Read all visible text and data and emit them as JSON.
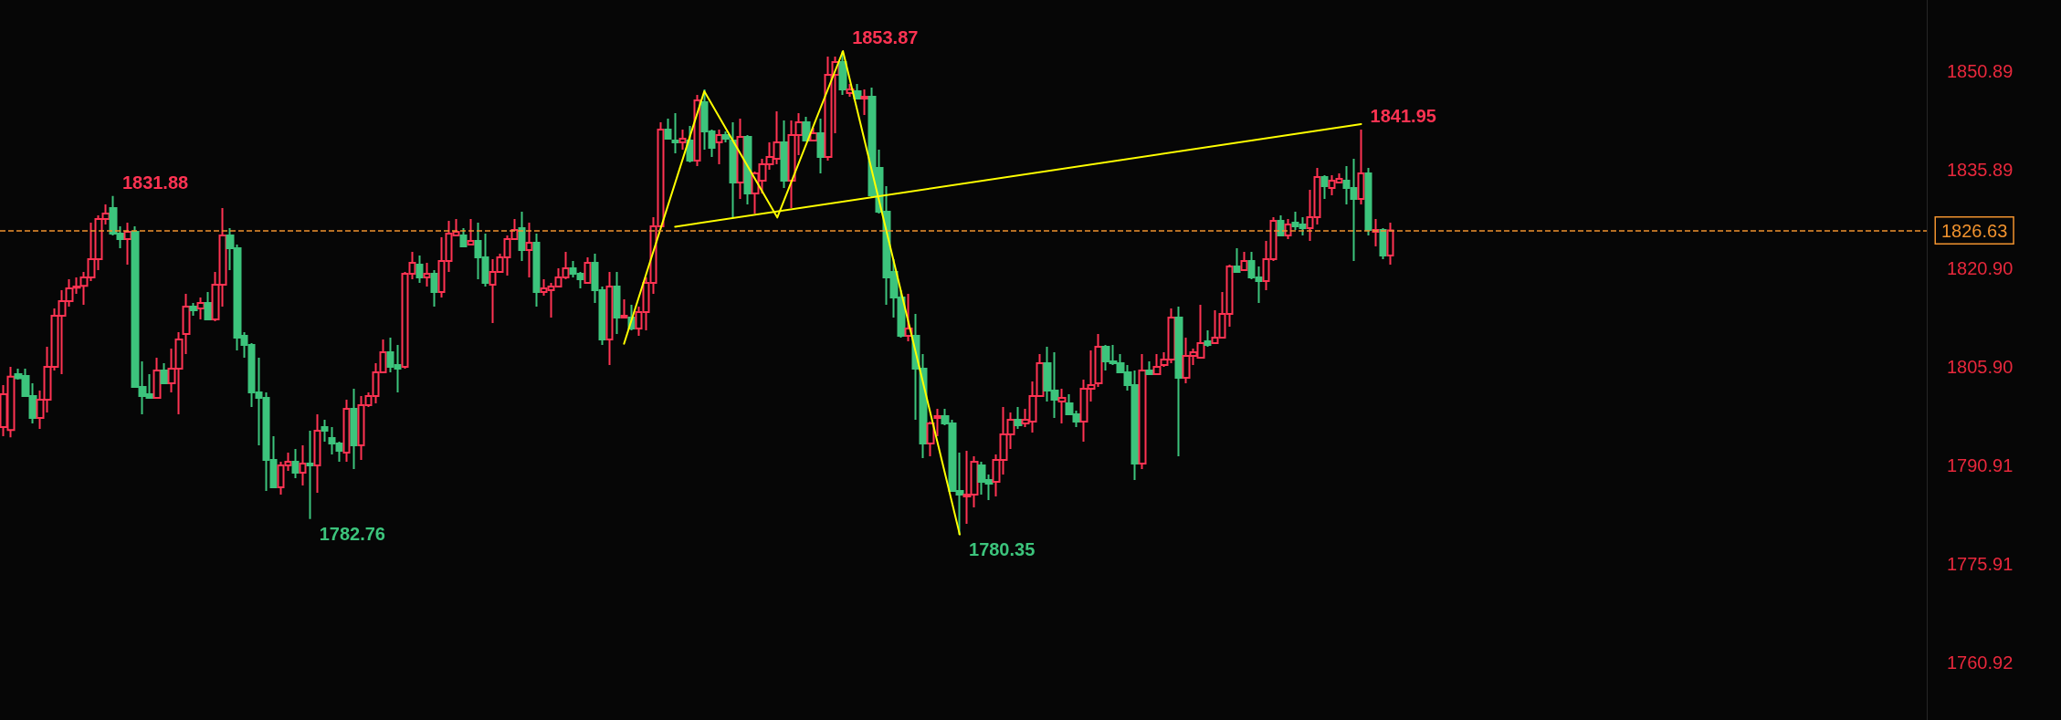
{
  "chart_data": {
    "type": "candlestick",
    "categories": [
      null,
      null,
      null,
      null,
      null,
      null,
      null,
      null,
      null,
      null,
      null,
      null,
      null,
      null,
      null,
      null,
      null,
      null,
      null,
      null,
      null,
      null,
      null,
      null,
      null,
      null,
      null,
      null,
      null,
      null,
      null,
      null,
      null,
      null,
      null,
      null,
      null,
      null,
      null,
      null,
      null,
      null,
      null,
      null,
      null,
      null,
      null,
      null,
      null,
      null,
      null,
      null,
      null,
      null,
      null,
      null,
      null,
      null,
      null,
      null,
      null,
      null,
      null,
      null,
      null,
      null,
      null,
      null,
      null,
      null,
      null,
      null,
      null,
      null,
      null,
      null,
      null,
      null,
      null,
      null,
      null,
      null,
      null,
      null,
      null,
      null,
      null,
      null,
      null,
      null,
      null,
      null,
      null,
      null,
      null,
      null,
      null,
      null,
      null,
      null,
      null,
      null,
      null,
      null,
      null,
      null,
      null,
      null,
      null,
      null,
      null,
      null,
      null,
      null,
      null,
      null,
      null,
      null,
      null,
      null,
      null,
      null,
      null,
      null,
      null,
      null,
      null,
      null,
      null,
      null,
      null,
      null,
      null,
      null,
      null,
      null,
      null,
      null,
      null,
      null,
      null,
      null,
      null,
      null,
      null,
      null,
      null,
      null,
      null,
      null,
      null,
      null,
      null,
      null,
      null,
      null,
      null,
      null,
      null,
      null,
      null,
      null,
      null,
      null,
      null,
      null,
      null,
      null,
      null,
      null,
      null,
      null,
      null,
      null,
      null,
      null,
      null,
      null,
      null,
      null,
      null,
      null,
      null,
      null,
      null,
      null,
      null,
      null,
      null,
      null,
      null,
      null,
      null,
      null,
      null,
      null,
      null,
      null,
      null,
      null,
      null,
      null,
      null,
      null,
      null,
      null,
      null,
      null,
      null,
      null,
      null,
      null,
      null,
      null,
      null,
      null,
      null,
      null,
      null,
      null,
      null,
      null,
      null,
      null,
      null,
      null,
      null,
      null,
      null,
      null,
      null,
      null,
      null,
      null,
      null,
      null,
      null,
      null,
      null,
      null,
      null,
      null,
      null,
      null,
      null,
      null,
      null,
      null,
      null,
      null,
      null,
      null,
      null,
      null,
      null,
      null,
      null,
      null,
      null,
      null,
      null,
      null,
      null,
      null
    ],
    "ohlc": [
      [
        1796.73,
        1803.11,
        1795.34,
        1801.73
      ],
      [
        1796.27,
        1805.9,
        1795.16,
        1804.41
      ],
      [
        1804.79,
        1805.62,
        1803.95,
        1804.14
      ],
      [
        1804.51,
        1805.62,
        1801.46,
        1801.46
      ],
      [
        1801.46,
        1803.4,
        1797.29,
        1798.13
      ],
      [
        1798.13,
        1802.29,
        1796.46,
        1800.9
      ],
      [
        1800.9,
        1808.95,
        1798.96,
        1805.9
      ],
      [
        1805.9,
        1814.78,
        1805.34,
        1813.67
      ],
      [
        1813.67,
        1817.55,
        1804.79,
        1815.89
      ],
      [
        1815.89,
        1819.22,
        1815.05,
        1817.83
      ],
      [
        1817.92,
        1819.49,
        1817.0,
        1818.11
      ],
      [
        1818.2,
        1820.33,
        1815.33,
        1819.49
      ],
      [
        1819.49,
        1827.82,
        1818.94,
        1822.27
      ],
      [
        1822.27,
        1828.93,
        1820.6,
        1828.37
      ],
      [
        1828.37,
        1830.59,
        1827.54,
        1829.21
      ],
      [
        1830.04,
        1831.88,
        1825.88,
        1826.15
      ],
      [
        1826.15,
        1827.26,
        1823.93,
        1825.32
      ],
      [
        1825.32,
        1827.82,
        1821.44,
        1826.43
      ],
      [
        1826.43,
        1827.26,
        1802.84,
        1802.84
      ],
      [
        1802.84,
        1806.73,
        1798.68,
        1801.46
      ],
      [
        1801.73,
        1804.79,
        1801.18,
        1801.18
      ],
      [
        1801.18,
        1807.28,
        1801.18,
        1805.34
      ],
      [
        1805.34,
        1806.45,
        1803.4,
        1803.4
      ],
      [
        1803.4,
        1808.67,
        1802.01,
        1805.62
      ],
      [
        1805.62,
        1811.17,
        1798.68,
        1810.06
      ],
      [
        1810.89,
        1817.0,
        1807.84,
        1815.05
      ],
      [
        1815.05,
        1815.61,
        1813.67,
        1814.5
      ],
      [
        1814.78,
        1816.44,
        1813.11,
        1815.61
      ],
      [
        1815.61,
        1817.27,
        1813.11,
        1813.11
      ],
      [
        1813.11,
        1820.33,
        1812.83,
        1818.38
      ],
      [
        1818.38,
        1830.04,
        1815.05,
        1825.88
      ],
      [
        1825.88,
        1826.99,
        1820.6,
        1823.93
      ],
      [
        1823.93,
        1824.49,
        1808.39,
        1810.34
      ],
      [
        1810.61,
        1811.17,
        1807.28,
        1809.23
      ],
      [
        1809.23,
        1809.5,
        1799.79,
        1802.01
      ],
      [
        1802.01,
        1807.28,
        1793.96,
        1801.18
      ],
      [
        1801.18,
        1802.01,
        1787.02,
        1791.74
      ],
      [
        1791.74,
        1795.35,
        1787.58,
        1787.58
      ],
      [
        1787.58,
        1791.46,
        1786.47,
        1790.91
      ],
      [
        1790.91,
        1792.85,
        1790.08,
        1791.46
      ],
      [
        1791.46,
        1793.41,
        1788.97,
        1789.8
      ],
      [
        1789.8,
        1793.96,
        1787.86,
        1791.19
      ],
      [
        1791.19,
        1796.18,
        1782.76,
        1790.91
      ],
      [
        1790.91,
        1798.68,
        1786.75,
        1796.18
      ],
      [
        1796.74,
        1797.85,
        1794.52,
        1796.18
      ],
      [
        1795.07,
        1796.74,
        1792.57,
        1794.24
      ],
      [
        1794.24,
        1794.52,
        1791.46,
        1793.13
      ],
      [
        1792.85,
        1800.9,
        1791.46,
        1799.51
      ],
      [
        1799.51,
        1802.56,
        1790.35,
        1793.96
      ],
      [
        1793.96,
        1801.46,
        1791.74,
        1800.07
      ],
      [
        1800.07,
        1802.01,
        1799.79,
        1801.46
      ],
      [
        1801.46,
        1806.45,
        1800.34,
        1805.06
      ],
      [
        1805.06,
        1810.06,
        1805.06,
        1808.12
      ],
      [
        1808.12,
        1810.34,
        1805.06,
        1805.9
      ],
      [
        1806.17,
        1809.23,
        1802.01,
        1805.62
      ],
      [
        1805.9,
        1820.33,
        1805.62,
        1820.05
      ],
      [
        1820.05,
        1823.38,
        1819.22,
        1821.71
      ],
      [
        1821.44,
        1822.82,
        1818.66,
        1819.49
      ],
      [
        1819.49,
        1821.71,
        1818.11,
        1820.05
      ],
      [
        1820.05,
        1820.6,
        1815.05,
        1817.27
      ],
      [
        1817.27,
        1825.6,
        1816.44,
        1821.99
      ],
      [
        1821.99,
        1828.1,
        1820.33,
        1826.15
      ],
      [
        1825.88,
        1828.37,
        1825.88,
        1826.43
      ],
      [
        1825.88,
        1826.99,
        1824.21,
        1824.21
      ],
      [
        1824.49,
        1828.37,
        1824.49,
        1825.04
      ],
      [
        1825.04,
        1827.82,
        1819.21,
        1822.54
      ],
      [
        1822.54,
        1826.15,
        1818.1,
        1818.66
      ],
      [
        1818.38,
        1822.26,
        1812.55,
        1820.32
      ],
      [
        1820.32,
        1823.1,
        1820.32,
        1822.54
      ],
      [
        1822.54,
        1825.87,
        1819.77,
        1825.32
      ],
      [
        1825.32,
        1828.37,
        1825.32,
        1826.71
      ],
      [
        1826.98,
        1829.48,
        1821.99,
        1823.65
      ],
      [
        1823.65,
        1827.82,
        1819.49,
        1824.76
      ],
      [
        1824.76,
        1826.15,
        1815.05,
        1817.27
      ],
      [
        1817.27,
        1819.21,
        1816.71,
        1817.82
      ],
      [
        1817.55,
        1818.66,
        1813.38,
        1818.1
      ],
      [
        1818.1,
        1820.88,
        1818.1,
        1819.49
      ],
      [
        1819.49,
        1823.37,
        1819.21,
        1820.88
      ],
      [
        1820.88,
        1821.99,
        1819.49,
        1820.04
      ],
      [
        1820.04,
        1820.32,
        1817.82,
        1819.21
      ],
      [
        1818.66,
        1822.54,
        1818.66,
        1821.71
      ],
      [
        1821.71,
        1823.1,
        1815.6,
        1817.55
      ],
      [
        1817.55,
        1818.1,
        1809.22,
        1810.05
      ],
      [
        1810.05,
        1820.32,
        1806.17,
        1818.1
      ],
      [
        1818.1,
        1820.32,
        1810.89,
        1813.38
      ],
      [
        1813.38,
        1816.16,
        1813.38,
        1813.66
      ],
      [
        1813.38,
        1815.33,
        1811.44,
        1811.72
      ],
      [
        1811.72,
        1815.05,
        1810.61,
        1814.22
      ],
      [
        1814.22,
        1819.49,
        1811.44,
        1818.66
      ],
      [
        1818.66,
        1828.65,
        1816.99,
        1827.26
      ],
      [
        1827.26,
        1843.08,
        1827.26,
        1841.97
      ],
      [
        1841.97,
        1843.63,
        1840.58,
        1840.58
      ],
      [
        1840.3,
        1844.47,
        1838.36,
        1840.03
      ],
      [
        1840.03,
        1841.97,
        1838.92,
        1840.58
      ],
      [
        1840.3,
        1842.52,
        1836.97,
        1837.25
      ],
      [
        1837.25,
        1847.24,
        1836.42,
        1846.41
      ],
      [
        1846.13,
        1848.07,
        1838.92,
        1841.69
      ],
      [
        1841.69,
        1841.97,
        1837.81,
        1839.19
      ],
      [
        1840.03,
        1841.97,
        1836.7,
        1841.14
      ],
      [
        1841.14,
        1841.69,
        1840.03,
        1840.58
      ],
      [
        1840.3,
        1843.08,
        1828.65,
        1833.92
      ],
      [
        1833.92,
        1843.63,
        1831.42,
        1840.86
      ],
      [
        1840.86,
        1841.14,
        1830.59,
        1832.26
      ],
      [
        1832.26,
        1835.59,
        1829.2,
        1835.31
      ],
      [
        1834.2,
        1837.53,
        1832.26,
        1836.7
      ],
      [
        1836.7,
        1840.03,
        1835.86,
        1837.81
      ],
      [
        1837.53,
        1844.74,
        1836.7,
        1840.03
      ],
      [
        1840.03,
        1843.36,
        1833.09,
        1834.2
      ],
      [
        1834.2,
        1843.36,
        1830.04,
        1841.14
      ],
      [
        1841.14,
        1844.47,
        1838.08,
        1843.08
      ],
      [
        1843.08,
        1843.91,
        1840.3,
        1840.3
      ],
      [
        1840.3,
        1842.25,
        1840.3,
        1841.41
      ],
      [
        1841.41,
        1843.63,
        1835.31,
        1837.81
      ],
      [
        1837.81,
        1853.07,
        1837.25,
        1850.29
      ],
      [
        1850.29,
        1853.07,
        1841.41,
        1852.24
      ],
      [
        1852.24,
        1853.87,
        1847.24,
        1848.07
      ],
      [
        1847.52,
        1848.91,
        1846.96,
        1848.07
      ],
      [
        1847.8,
        1848.91,
        1846.69,
        1846.69
      ],
      [
        1846.69,
        1848.07,
        1844.19,
        1846.96
      ],
      [
        1846.96,
        1848.35,
        1831.7,
        1831.98
      ],
      [
        1836.14,
        1838.92,
        1829.2,
        1829.48
      ],
      [
        1829.48,
        1833.37,
        1815.33,
        1819.49
      ],
      [
        1820.32,
        1822.26,
        1813.38,
        1816.44
      ],
      [
        1816.44,
        1817.55,
        1810.33,
        1810.61
      ],
      [
        1810.61,
        1816.99,
        1809.78,
        1811.72
      ],
      [
        1810.61,
        1813.94,
        1797.84,
        1805.61
      ],
      [
        1805.61,
        1807.83,
        1792.01,
        1794.23
      ],
      [
        1794.23,
        1797.56,
        1792.29,
        1797.28
      ],
      [
        1798.12,
        1799.5,
        1795.34,
        1798.39
      ],
      [
        1798.39,
        1799.5,
        1797.01,
        1797.28
      ],
      [
        1797.28,
        1797.84,
        1787.02,
        1787.02
      ],
      [
        1787.02,
        1792.84,
        1780.35,
        1786.46
      ],
      [
        1786.18,
        1793.12,
        1782.02,
        1786.46
      ],
      [
        1786.46,
        1792.29,
        1784.52,
        1791.46
      ],
      [
        1790.9,
        1791.46,
        1786.46,
        1788.4
      ],
      [
        1788.68,
        1789.51,
        1785.63,
        1788.13
      ],
      [
        1788.4,
        1792.57,
        1786.18,
        1791.73
      ],
      [
        1791.73,
        1799.78,
        1789.51,
        1795.62
      ],
      [
        1795.62,
        1798.95,
        1793.4,
        1797.84
      ],
      [
        1797.84,
        1799.78,
        1796.45,
        1797.01
      ],
      [
        1797.28,
        1799.5,
        1796.73,
        1797.84
      ],
      [
        1797.56,
        1803.67,
        1795.9,
        1801.45
      ],
      [
        1801.45,
        1807.83,
        1801.45,
        1806.44
      ],
      [
        1806.44,
        1808.94,
        1800.61,
        1802.28
      ],
      [
        1802.28,
        1808.11,
        1798.12,
        1800.89
      ],
      [
        1800.61,
        1802.56,
        1797.28,
        1801.17
      ],
      [
        1800.34,
        1801.72,
        1798.67,
        1798.67
      ],
      [
        1798.67,
        1799.23,
        1796.73,
        1797.56
      ],
      [
        1797.56,
        1803.94,
        1794.51,
        1802.56
      ],
      [
        1802.56,
        1808.38,
        1800.61,
        1803.11
      ],
      [
        1803.39,
        1810.88,
        1802.83,
        1808.94
      ],
      [
        1808.94,
        1809.22,
        1805.33,
        1806.72
      ],
      [
        1806.72,
        1809.22,
        1806.16,
        1806.44
      ],
      [
        1806.44,
        1807.83,
        1805.06,
        1805.06
      ],
      [
        1805.06,
        1806.16,
        1802.28,
        1803.11
      ],
      [
        1803.11,
        1805.33,
        1788.68,
        1791.18
      ],
      [
        1791.18,
        1807.83,
        1790.35,
        1805.33
      ],
      [
        1805.33,
        1806.72,
        1804.78,
        1804.78
      ],
      [
        1804.78,
        1807.83,
        1804.78,
        1805.89
      ],
      [
        1806.16,
        1808.11,
        1805.89,
        1807.0
      ],
      [
        1807.0,
        1814.77,
        1806.44,
        1813.38
      ],
      [
        1813.38,
        1815.05,
        1792.29,
        1804.22
      ],
      [
        1804.22,
        1810.33,
        1803.39,
        1807.55
      ],
      [
        1807.55,
        1808.66,
        1806.16,
        1808.11
      ],
      [
        1807.27,
        1815.32,
        1807.27,
        1809.49
      ],
      [
        1809.77,
        1811.44,
        1808.94,
        1809.22
      ],
      [
        1809.49,
        1814.49,
        1809.49,
        1810.33
      ],
      [
        1810.33,
        1817.27,
        1810.33,
        1813.94
      ],
      [
        1813.94,
        1821.43,
        1811.99,
        1821.15
      ],
      [
        1821.15,
        1823.93,
        1820.32,
        1820.32
      ],
      [
        1820.6,
        1823.37,
        1820.6,
        1821.98
      ],
      [
        1821.98,
        1823.37,
        1819.21,
        1819.49
      ],
      [
        1819.49,
        1821.15,
        1815.6,
        1818.93
      ],
      [
        1818.93,
        1825.04,
        1817.54,
        1822.26
      ],
      [
        1822.26,
        1828.64,
        1821.98,
        1828.09
      ],
      [
        1828.09,
        1828.92,
        1825.87,
        1825.87
      ],
      [
        1825.87,
        1828.37,
        1825.31,
        1827.53
      ],
      [
        1827.81,
        1829.48,
        1826.7,
        1827.26
      ],
      [
        1827.53,
        1828.64,
        1825.87,
        1826.98
      ],
      [
        1826.98,
        1832.81,
        1825.04,
        1828.64
      ],
      [
        1828.64,
        1836.14,
        1827.53,
        1834.75
      ],
      [
        1834.75,
        1835.03,
        1831.42,
        1833.36
      ],
      [
        1833.08,
        1835.03,
        1831.97,
        1834.19
      ],
      [
        1833.92,
        1835.3,
        1833.92,
        1834.47
      ],
      [
        1834.19,
        1836.41,
        1830.59,
        1833.08
      ],
      [
        1833.08,
        1837.52,
        1821.98,
        1831.42
      ],
      [
        1831.42,
        1841.95,
        1830.59,
        1835.3
      ],
      [
        1835.3,
        1836.14,
        1825.87,
        1826.7
      ],
      [
        1826.42,
        1828.37,
        1824.2,
        1826.7
      ],
      [
        1826.7,
        1826.98,
        1822.26,
        1822.82
      ],
      [
        1822.82,
        1827.81,
        1821.43,
        1826.63
      ],
      null,
      null,
      null,
      null,
      null,
      null,
      null,
      null,
      null,
      null,
      null,
      null,
      null,
      null,
      null,
      null,
      null,
      null,
      null,
      null,
      null,
      null,
      null,
      null,
      null,
      null,
      null,
      null,
      null,
      null,
      null,
      null,
      null,
      null,
      null,
      null,
      null,
      null,
      null,
      null,
      null,
      null,
      null,
      null,
      null,
      null,
      null,
      null,
      null,
      null,
      null,
      null,
      null,
      null,
      null,
      null,
      null,
      null,
      null,
      null,
      null,
      null,
      null,
      null,
      null,
      null,
      null,
      null,
      null,
      null,
      null,
      null,
      null
    ],
    "colors": [
      "#ff3352",
      "#ff3352",
      "#3cc47c",
      "#3cc47c",
      "#3cc47c",
      "#ff3352",
      "#ff3352",
      "#ff3352",
      "#ff3352",
      "#ff3352",
      "#ff3352",
      "#ff3352",
      "#ff3352",
      "#ff3352",
      "#ff3352",
      "#3cc47c",
      "#3cc47c",
      "#ff3352",
      "#3cc47c",
      "#3cc47c",
      "#3cc47c",
      "#ff3352",
      "#3cc47c",
      "#ff3352",
      "#ff3352",
      "#ff3352",
      "#3cc47c",
      "#ff3352",
      "#3cc47c",
      "#ff3352",
      "#ff3352",
      "#3cc47c",
      "#3cc47c",
      "#3cc47c",
      "#3cc47c",
      "#3cc47c",
      "#3cc47c",
      "#3cc47c",
      "#ff3352",
      "#ff3352",
      "#3cc47c",
      "#ff3352",
      "#3cc47c",
      "#ff3352",
      "#3cc47c",
      "#3cc47c",
      "#3cc47c",
      "#ff3352",
      "#3cc47c",
      "#ff3352",
      "#ff3352",
      "#ff3352",
      "#ff3352",
      "#3cc47c",
      "#3cc47c",
      "#ff3352",
      "#ff3352",
      "#3cc47c",
      "#ff3352",
      "#3cc47c",
      "#ff3352",
      "#ff3352",
      "#ff3352",
      "#3cc47c",
      "#ff3352",
      "#3cc47c",
      "#3cc47c",
      "#ff3352",
      "#ff3352",
      "#ff3352",
      "#ff3352",
      "#3cc47c",
      "#ff3352",
      "#3cc47c",
      "#ff3352",
      "#ff3352",
      "#ff3352",
      "#ff3352",
      "#3cc47c",
      "#3cc47c",
      "#ff3352",
      "#3cc47c",
      "#3cc47c",
      "#ff3352",
      "#3cc47c",
      "#ff3352",
      "#3cc47c",
      "#ff3352",
      "#ff3352",
      "#ff3352",
      "#ff3352",
      "#3cc47c",
      "#3cc47c",
      "#ff3352",
      "#3cc47c",
      "#ff3352",
      "#3cc47c",
      "#3cc47c",
      "#ff3352",
      "#3cc47c",
      "#3cc47c",
      "#ff3352",
      "#3cc47c",
      "#ff3352",
      "#ff3352",
      "#ff3352",
      "#ff3352",
      "#3cc47c",
      "#ff3352",
      "#ff3352",
      "#3cc47c",
      "#ff3352",
      "#3cc47c",
      "#ff3352",
      "#ff3352",
      "#3cc47c",
      "#ff3352",
      "#3cc47c",
      "#ff3352",
      "#3cc47c",
      "#3cc47c",
      "#3cc47c",
      "#3cc47c",
      "#3cc47c",
      "#ff3352",
      "#3cc47c",
      "#3cc47c",
      "#ff3352",
      "#ff3352",
      "#3cc47c",
      "#3cc47c",
      "#3cc47c",
      "#ff3352",
      "#ff3352",
      "#3cc47c",
      "#3cc47c",
      "#ff3352",
      "#ff3352",
      "#ff3352",
      "#3cc47c",
      "#ff3352",
      "#ff3352",
      "#ff3352",
      "#3cc47c",
      "#3cc47c",
      "#ff3352",
      "#3cc47c",
      "#3cc47c",
      "#ff3352",
      "#ff3352",
      "#ff3352",
      "#3cc47c",
      "#3cc47c",
      "#3cc47c",
      "#3cc47c",
      "#3cc47c",
      "#ff3352",
      "#3cc47c",
      "#ff3352",
      "#ff3352",
      "#ff3352",
      "#3cc47c",
      "#ff3352",
      "#ff3352",
      "#ff3352",
      "#3cc47c",
      "#ff3352",
      "#ff3352",
      "#ff3352",
      "#3cc47c",
      "#ff3352",
      "#3cc47c",
      "#3cc47c",
      "#ff3352",
      "#ff3352",
      "#3cc47c",
      "#ff3352",
      "#3cc47c",
      "#3cc47c",
      "#ff3352",
      "#ff3352",
      "#3cc47c",
      "#ff3352",
      "#ff3352",
      "#3cc47c",
      "#3cc47c",
      "#ff3352",
      "#3cc47c",
      "#ff3352",
      "#3cc47c",
      "#ff3352",
      null,
      null,
      null,
      null,
      null,
      null,
      null,
      null,
      null,
      null,
      null,
      null,
      null,
      null,
      null,
      null,
      null,
      null,
      null,
      null,
      null,
      null,
      null,
      null,
      null,
      null,
      null,
      null,
      null,
      null,
      null,
      null,
      null,
      null,
      null,
      null,
      null,
      null,
      null,
      null,
      null,
      null,
      null,
      null,
      null,
      null,
      null,
      null,
      null,
      null,
      null,
      null,
      null,
      null,
      null,
      null,
      null,
      null,
      null,
      null,
      null,
      null,
      null,
      null,
      null,
      null,
      null,
      null,
      null,
      null,
      null,
      null,
      null
    ],
    "value_labels": [
      null,
      null,
      null,
      null,
      null,
      null,
      null,
      null,
      null,
      null,
      null,
      null,
      null,
      null,
      null,
      "1831.88",
      null,
      null,
      null,
      null,
      null,
      null,
      null,
      null,
      null,
      null,
      null,
      null,
      null,
      null,
      null,
      null,
      null,
      null,
      null,
      null,
      null,
      null,
      null,
      null,
      null,
      null,
      "1782.76",
      null,
      null,
      null,
      null,
      null,
      null,
      null,
      null,
      null,
      null,
      null,
      null,
      null,
      null,
      null,
      null,
      null,
      null,
      null,
      null,
      null,
      null,
      null,
      null,
      null,
      null,
      null,
      null,
      null,
      null,
      null,
      null,
      null,
      null,
      null,
      null,
      null,
      null,
      null,
      null,
      null,
      null,
      null,
      null,
      null,
      null,
      null,
      null,
      null,
      null,
      null,
      null,
      null,
      null,
      null,
      null,
      null,
      null,
      null,
      null,
      null,
      null,
      null,
      null,
      null,
      null,
      null,
      null,
      null,
      null,
      null,
      null,
      "1853.87",
      null,
      null,
      null,
      null,
      null,
      null,
      null,
      null,
      null,
      null,
      null,
      null,
      null,
      null,
      null,
      "1780.35",
      null,
      null,
      null,
      null,
      null,
      null,
      null,
      null,
      null,
      null,
      null,
      null,
      null,
      null,
      null,
      null,
      null,
      null,
      null,
      null,
      null,
      null,
      null,
      null,
      null,
      null,
      null,
      null,
      null,
      null,
      null,
      null,
      null,
      null,
      null,
      null,
      null,
      null,
      null,
      null,
      null,
      null,
      null,
      null,
      null,
      null,
      null,
      null,
      null,
      null,
      null,
      null,
      null,
      null,
      "1841.95",
      null,
      null,
      null,
      null,
      null,
      null,
      null,
      null,
      null,
      null,
      null,
      null,
      null,
      null,
      null,
      null,
      null,
      null,
      null,
      null,
      null,
      null,
      null,
      null,
      null,
      null,
      null,
      null,
      null,
      null,
      null,
      null,
      null,
      null,
      null,
      null,
      null,
      null,
      null,
      null,
      null,
      null,
      null,
      null,
      null,
      null,
      null,
      null,
      null,
      null,
      null,
      null,
      null,
      null,
      null,
      null,
      null,
      null,
      null,
      null,
      null,
      null,
      null,
      null,
      null,
      null,
      null,
      null,
      null,
      null,
      null,
      null,
      null,
      null,
      null,
      null,
      null
    ],
    "series": [
      {
        "type": "line",
        "color": "#ffff00",
        "line_style": "solid",
        "values": [
          null,
          null,
          null,
          null,
          null,
          null,
          null,
          null,
          null,
          null,
          null,
          null,
          null,
          null,
          null,
          null,
          null,
          null,
          null,
          null,
          null,
          null,
          null,
          null,
          null,
          null,
          null,
          null,
          null,
          null,
          null,
          null,
          null,
          null,
          null,
          null,
          null,
          null,
          null,
          null,
          null,
          null,
          null,
          null,
          null,
          null,
          null,
          null,
          null,
          null,
          null,
          null,
          null,
          null,
          null,
          null,
          null,
          null,
          null,
          null,
          null,
          null,
          null,
          null,
          null,
          null,
          null,
          null,
          null,
          null,
          null,
          null,
          null,
          null,
          null,
          null,
          null,
          null,
          null,
          null,
          null,
          null,
          null,
          null,
          null,
          1809.4,
          null,
          null,
          null,
          null,
          null,
          null,
          null,
          null,
          null,
          null,
          1847.8,
          null,
          null,
          null,
          null,
          null,
          null,
          null,
          null,
          null,
          1828.6,
          null,
          null,
          null,
          null,
          null,
          null,
          null,
          null,
          1853.9,
          null,
          null,
          null,
          null,
          null,
          null,
          null,
          null,
          null,
          null,
          null,
          null,
          null,
          null,
          null,
          1780.4,
          null,
          null,
          null,
          null,
          null,
          null,
          null,
          null,
          null,
          null,
          null,
          null,
          null,
          null,
          null,
          null,
          null,
          null,
          null,
          null,
          null,
          null,
          null,
          null,
          null,
          null,
          null,
          null,
          null,
          null,
          null,
          null,
          null,
          null,
          null,
          null,
          null,
          null,
          null,
          null,
          null,
          null,
          null,
          null,
          null,
          null,
          null,
          null,
          null,
          null,
          null,
          null,
          null,
          null,
          null,
          null,
          null,
          null,
          null,
          null,
          null,
          null,
          null,
          null,
          null,
          null,
          null,
          null,
          null,
          null,
          null,
          null,
          null,
          null,
          null,
          null,
          null,
          null,
          null,
          null,
          null,
          null,
          null,
          null,
          null,
          null,
          null,
          null,
          null,
          null,
          null,
          null,
          null,
          null,
          null,
          null,
          null,
          null,
          null,
          null,
          null,
          null,
          null,
          null,
          null,
          null,
          null,
          null,
          null,
          null,
          null,
          null,
          null,
          null,
          null,
          null,
          null,
          null,
          null,
          null,
          null,
          null,
          null,
          null,
          null,
          null,
          null,
          null,
          null,
          null,
          null,
          null
        ]
      },
      {
        "type": "line",
        "color": "#ffff00",
        "line_style": "solid",
        "values": [
          null,
          null,
          null,
          null,
          null,
          null,
          null,
          null,
          null,
          null,
          null,
          null,
          null,
          null,
          null,
          null,
          null,
          null,
          null,
          null,
          null,
          null,
          null,
          null,
          null,
          null,
          null,
          null,
          null,
          null,
          null,
          null,
          null,
          null,
          null,
          null,
          null,
          null,
          null,
          null,
          null,
          null,
          null,
          null,
          null,
          null,
          null,
          null,
          null,
          null,
          null,
          null,
          null,
          null,
          null,
          null,
          null,
          null,
          null,
          null,
          null,
          null,
          null,
          null,
          null,
          null,
          null,
          null,
          null,
          null,
          null,
          null,
          null,
          null,
          null,
          null,
          null,
          null,
          null,
          null,
          null,
          null,
          null,
          null,
          null,
          null,
          null,
          null,
          null,
          null,
          null,
          null,
          1827.2,
          null,
          null,
          null,
          null,
          null,
          null,
          null,
          null,
          null,
          null,
          null,
          null,
          null,
          null,
          null,
          null,
          null,
          null,
          null,
          null,
          null,
          null,
          null,
          null,
          null,
          null,
          null,
          null,
          null,
          null,
          null,
          null,
          null,
          null,
          null,
          null,
          null,
          null,
          null,
          null,
          null,
          null,
          null,
          null,
          null,
          null,
          null,
          null,
          null,
          null,
          null,
          null,
          null,
          null,
          null,
          null,
          null,
          null,
          null,
          null,
          null,
          null,
          null,
          null,
          null,
          null,
          null,
          null,
          null,
          null,
          null,
          null,
          null,
          null,
          null,
          null,
          null,
          null,
          null,
          null,
          null,
          null,
          null,
          null,
          null,
          null,
          null,
          null,
          null,
          null,
          null,
          null,
          null,
          1842.8,
          null,
          null,
          null,
          null,
          null,
          null,
          null,
          null,
          null,
          null,
          null,
          null,
          null,
          null,
          null,
          null,
          null,
          null,
          null,
          null,
          null,
          null,
          null,
          null,
          null,
          null,
          null,
          null,
          null,
          null,
          null,
          null,
          null,
          null,
          null,
          null,
          null,
          null,
          null,
          null,
          null,
          null,
          null,
          null,
          null,
          null,
          null,
          null,
          null,
          null,
          null,
          null,
          null,
          null,
          null,
          null,
          null,
          null,
          null,
          null,
          null,
          null,
          null,
          null,
          null,
          null,
          null,
          null,
          null,
          null,
          null,
          null,
          null,
          null,
          null,
          null,
          null
        ]
      }
    ],
    "ylim": [
      1752.19,
      1861.67
    ],
    "yticks": [
      1760.92,
      1775.91,
      1790.91,
      {
        "value": 1805.9,
        "label": "1805.90"
      },
      {
        "value": 1820.9,
        "label": "1820.90"
      },
      1835.89,
      1850.89
    ],
    "tick_labels": "y",
    "ref_lines": [
      {
        "axis": "y",
        "value": 1826.63,
        "label": "1826.63",
        "color": "#f0922e",
        "line_style": "dashed"
      }
    ]
  }
}
